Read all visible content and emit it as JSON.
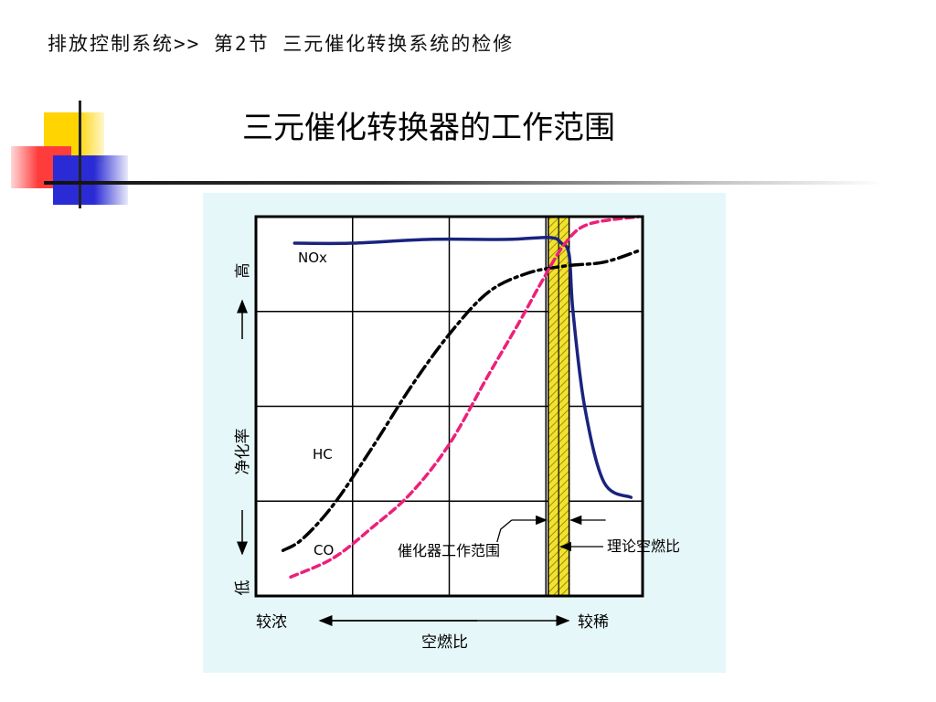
{
  "header": {
    "breadcrumb": "排放控制系统>> 第2节 三元催化转换系统的检修",
    "title": "三元催化转换器的工作范围"
  },
  "colors": {
    "chart_bg": "#e6f7f9",
    "nox": "#1a237e",
    "hc": "#000000",
    "co": "#ee1f7a",
    "band": "#f2e230"
  },
  "chart_data": {
    "type": "line",
    "title": "",
    "xlabel": "空燃比",
    "ylabel": "净化率",
    "x_ticks": [
      "较浓",
      "较稀"
    ],
    "y_ticks": [
      "低",
      "高"
    ],
    "xlim": [
      0,
      1
    ],
    "ylim": [
      0,
      1
    ],
    "grid": true,
    "series": [
      {
        "name": "NOx",
        "x": [
          0.1,
          0.25,
          0.45,
          0.65,
          0.76,
          0.79,
          0.81,
          0.82,
          0.85,
          0.9,
          0.97
        ],
        "y": [
          0.93,
          0.93,
          0.94,
          0.94,
          0.945,
          0.93,
          0.9,
          0.75,
          0.5,
          0.3,
          0.26
        ]
      },
      {
        "name": "HC",
        "x": [
          0.07,
          0.12,
          0.2,
          0.3,
          0.4,
          0.5,
          0.6,
          0.7,
          0.8,
          0.9,
          0.99
        ],
        "y": [
          0.12,
          0.15,
          0.24,
          0.39,
          0.55,
          0.69,
          0.8,
          0.85,
          0.87,
          0.88,
          0.91
        ]
      },
      {
        "name": "CO",
        "x": [
          0.09,
          0.2,
          0.3,
          0.4,
          0.5,
          0.6,
          0.68,
          0.74,
          0.8,
          0.86,
          0.99
        ],
        "y": [
          0.05,
          0.1,
          0.18,
          0.27,
          0.4,
          0.58,
          0.72,
          0.83,
          0.93,
          0.98,
          1.0
        ]
      }
    ],
    "annotations": {
      "operating_range": {
        "label": "催化器工作范围",
        "x_range": [
          0.756,
          0.81
        ]
      },
      "stoichiometric": {
        "label": "理论空燃比",
        "x": 0.783
      }
    }
  }
}
